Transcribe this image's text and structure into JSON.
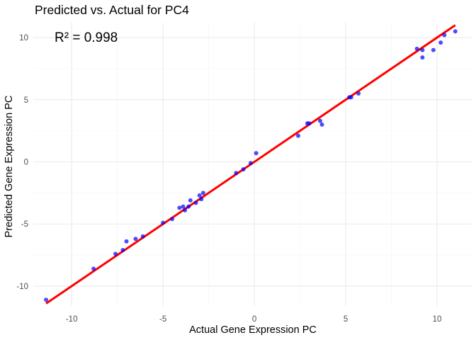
{
  "chart_data": {
    "type": "scatter",
    "title": "Predicted vs. Actual for PC4",
    "xlabel": "Actual Gene Expression PC",
    "ylabel": "Predicted Gene Expression PC",
    "xlim": [
      -12.1,
      11.9
    ],
    "ylim": [
      -11.6,
      11.2
    ],
    "x_ticks": [
      -10,
      -5,
      0,
      5,
      10
    ],
    "y_ticks": [
      -10,
      -5,
      0,
      5,
      10
    ],
    "x_tick_labels": [
      "-10",
      "-5",
      "0",
      "5",
      "10"
    ],
    "y_tick_labels": [
      "-10",
      "-5",
      "0",
      "5",
      "10"
    ],
    "grid": true,
    "annotation": "R² = 0.998",
    "point_color": "#0000ff",
    "fit_line_color": "#ff0000",
    "fit_line": {
      "slope": 1.0,
      "intercept": 0.0,
      "x_range": [
        -11.4,
        11.0
      ]
    },
    "points": [
      {
        "x": -11.4,
        "y": -11.1
      },
      {
        "x": -8.8,
        "y": -8.6
      },
      {
        "x": -7.6,
        "y": -7.4
      },
      {
        "x": -7.2,
        "y": -7.1
      },
      {
        "x": -7.0,
        "y": -6.4
      },
      {
        "x": -6.5,
        "y": -6.2
      },
      {
        "x": -6.1,
        "y": -6.0
      },
      {
        "x": -5.0,
        "y": -4.9
      },
      {
        "x": -4.5,
        "y": -4.6
      },
      {
        "x": -4.1,
        "y": -3.7
      },
      {
        "x": -3.9,
        "y": -3.6
      },
      {
        "x": -3.8,
        "y": -3.9
      },
      {
        "x": -3.6,
        "y": -3.6
      },
      {
        "x": -3.5,
        "y": -3.1
      },
      {
        "x": -3.2,
        "y": -3.3
      },
      {
        "x": -3.0,
        "y": -2.7
      },
      {
        "x": -2.9,
        "y": -3.0
      },
      {
        "x": -2.8,
        "y": -2.5
      },
      {
        "x": -1.0,
        "y": -0.9
      },
      {
        "x": -0.6,
        "y": -0.6
      },
      {
        "x": -0.2,
        "y": -0.1
      },
      {
        "x": 0.1,
        "y": 0.7
      },
      {
        "x": 2.4,
        "y": 2.1
      },
      {
        "x": 2.9,
        "y": 3.1
      },
      {
        "x": 3.0,
        "y": 3.1
      },
      {
        "x": 3.6,
        "y": 3.3
      },
      {
        "x": 3.7,
        "y": 3.0
      },
      {
        "x": 5.2,
        "y": 5.2
      },
      {
        "x": 5.3,
        "y": 5.2
      },
      {
        "x": 5.7,
        "y": 5.5
      },
      {
        "x": 8.9,
        "y": 9.1
      },
      {
        "x": 9.2,
        "y": 9.0
      },
      {
        "x": 9.2,
        "y": 8.4
      },
      {
        "x": 9.8,
        "y": 9.0
      },
      {
        "x": 10.2,
        "y": 9.6
      },
      {
        "x": 10.4,
        "y": 10.2
      },
      {
        "x": 11.0,
        "y": 10.5
      }
    ]
  }
}
